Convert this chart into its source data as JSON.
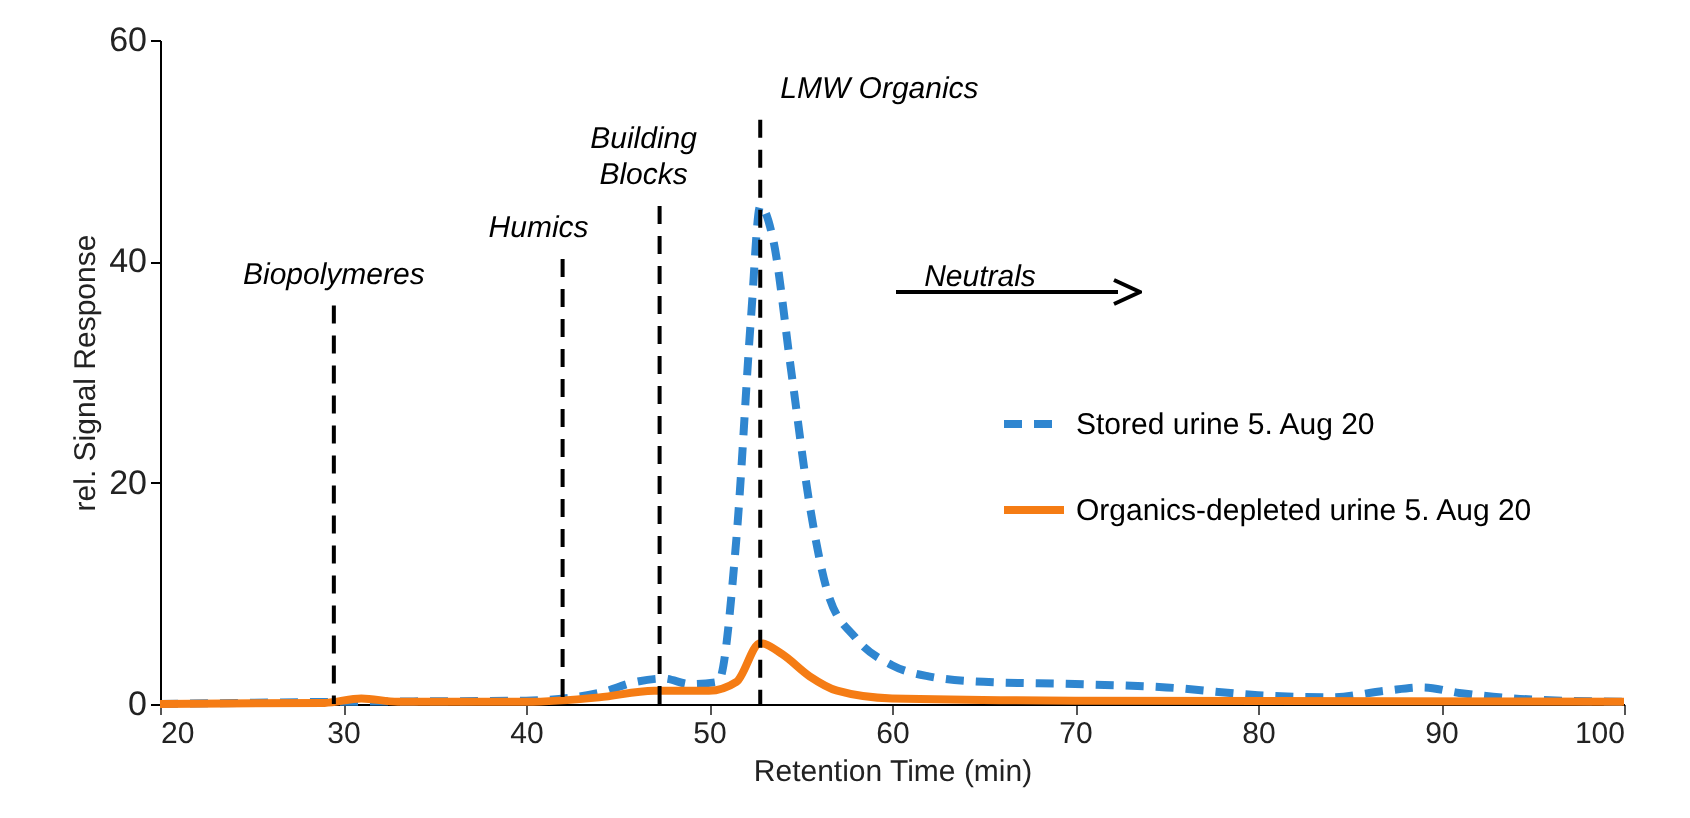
{
  "chart_data": {
    "type": "line",
    "xlabel": "Retention Time (min)",
    "ylabel": "rel. Signal Response",
    "xlim": [
      20,
      100
    ],
    "xticks": [
      20,
      30,
      40,
      50,
      60,
      70,
      80,
      90,
      100
    ],
    "ylim": [
      0,
      60
    ],
    "yticks": [
      0,
      20,
      40,
      60
    ],
    "grid": false,
    "legend": "right",
    "marker": "none",
    "series": [
      {
        "name": "Stored urine 5. Aug 20",
        "color": "#2f86d0",
        "line_style": "dashed",
        "x": [
          20,
          30,
          40,
          44,
          46,
          47.5,
          49,
          50.5,
          51.5,
          52.3,
          52.8,
          53.5,
          54.5,
          55.5,
          56.5,
          58,
          60,
          62,
          65,
          70,
          75,
          80,
          84,
          87,
          89,
          91,
          95,
          100
        ],
        "values": [
          0,
          0.2,
          0.3,
          1,
          2,
          2.3,
          1.8,
          2,
          15,
          35,
          45,
          42,
          30,
          18,
          10,
          6,
          3.5,
          2.5,
          2,
          1.8,
          1.5,
          0.8,
          0.6,
          1.2,
          1.5,
          1,
          0.4,
          0.2
        ]
      },
      {
        "name": "Organics-depleted urine 5. Aug 20",
        "color": "#f57c14",
        "line_style": "solid",
        "x": [
          20,
          29,
          31,
          33,
          40,
          44,
          47,
          50,
          51.5,
          52.8,
          54,
          55.5,
          57,
          60,
          70,
          100
        ],
        "values": [
          0,
          0.1,
          0.5,
          0.2,
          0.2,
          0.6,
          1.2,
          1.2,
          2,
          5.5,
          4.5,
          2.5,
          1.2,
          0.5,
          0.3,
          0.2
        ]
      }
    ],
    "ref_lines": [
      {
        "axis": "x",
        "value": 29.5,
        "label": "Biopolymeres",
        "color": "#000000",
        "line_style": "dashed"
      },
      {
        "axis": "x",
        "value": 42,
        "label": "Humics",
        "color": "#000000",
        "line_style": "dashed"
      },
      {
        "axis": "x",
        "value": 47.3,
        "label": "Building\nBlocks",
        "color": "#000000",
        "line_style": "dashed"
      },
      {
        "axis": "x",
        "value": 52.8,
        "label": "LMW Organics",
        "color": "#000000",
        "line_style": "dashed"
      }
    ],
    "annotations": [
      "Neutrals"
    ]
  }
}
